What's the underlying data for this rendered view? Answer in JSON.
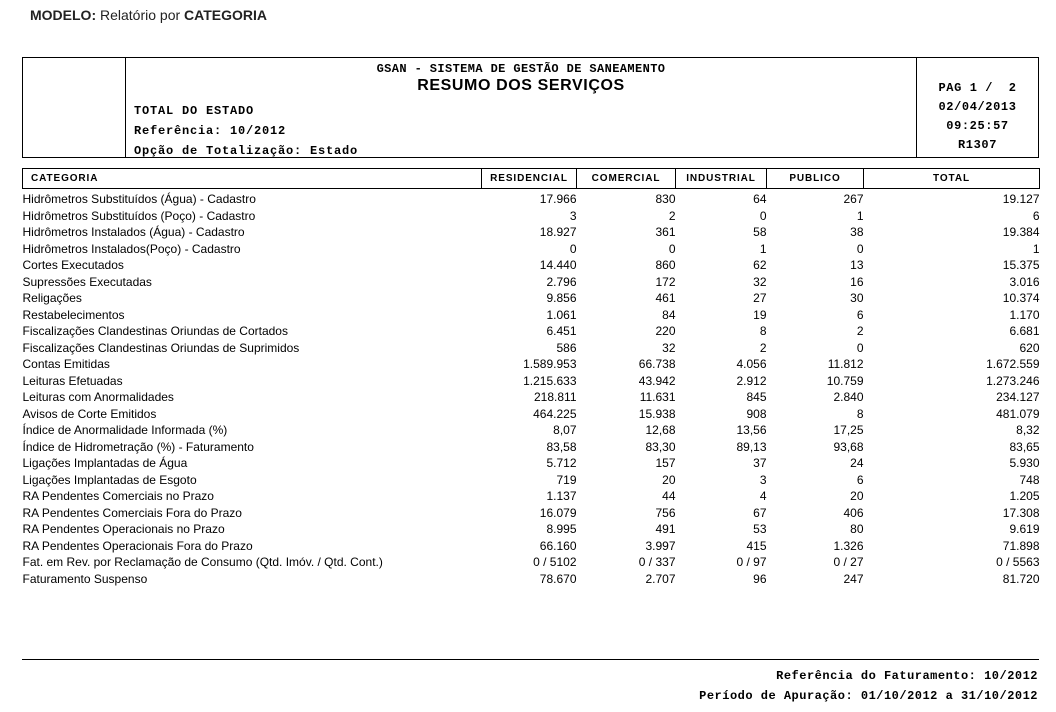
{
  "page": {
    "modelo_label": "MODELO:",
    "modelo_text": " Relatório por ",
    "modelo_emphasis": "CATEGORIA"
  },
  "header": {
    "system_title": "GSAN - SISTEMA DE GESTÃO DE SANEAMENTO",
    "report_title": "RESUMO DOS SERVIÇOS",
    "scope": "TOTAL DO ESTADO",
    "reference": "Referência: 10/2012",
    "totalization": "Opção de Totalização: Estado",
    "page_info": "PAG 1 /  2",
    "date": "02/04/2013",
    "time": "09:25:57",
    "report_code": "R1307"
  },
  "table": {
    "columns": [
      "CATEGORIA",
      "RESIDENCIAL",
      "COMERCIAL",
      "INDUSTRIAL",
      "PUBLICO",
      "TOTAL"
    ],
    "rows": [
      {
        "label": "Hidrômetros Substituídos (Água) - Cadastro",
        "values": [
          "17.966",
          "830",
          "64",
          "267",
          "19.127"
        ],
        "gap": false
      },
      {
        "label": "Hidrômetros Substituídos (Poço) - Cadastro",
        "values": [
          "3",
          "2",
          "0",
          "1",
          "6"
        ],
        "gap": false
      },
      {
        "label": "Hidrômetros Instalados (Água) - Cadastro",
        "values": [
          "18.927",
          "361",
          "58",
          "38",
          "19.384"
        ],
        "gap": false
      },
      {
        "label": "Hidrômetros Instalados(Poço) - Cadastro",
        "values": [
          "0",
          "0",
          "1",
          "0",
          "1"
        ],
        "gap": false
      },
      {
        "label": "Cortes Executados",
        "values": [
          "14.440",
          "860",
          "62",
          "13",
          "15.375"
        ],
        "gap": false
      },
      {
        "label": "Supressões Executadas",
        "values": [
          "2.796",
          "172",
          "32",
          "16",
          "3.016"
        ],
        "gap": false
      },
      {
        "label": "Religações",
        "values": [
          "9.856",
          "461",
          "27",
          "30",
          "10.374"
        ],
        "gap": false
      },
      {
        "label": "Restabelecimentos",
        "values": [
          "1.061",
          "84",
          "19",
          "6",
          "1.170"
        ],
        "gap": false
      },
      {
        "label": "Fiscalizações Clandestinas Oriundas de Cortados",
        "values": [
          "6.451",
          "220",
          "8",
          "2",
          "6.681"
        ],
        "gap": false
      },
      {
        "label": "Fiscalizações Clandestinas Oriundas de Suprimidos",
        "values": [
          "586",
          "32",
          "2",
          "0",
          "620"
        ],
        "gap": false
      },
      {
        "label": "Contas Emitidas",
        "values": [
          "1.589.953",
          "66.738",
          "4.056",
          "11.812",
          "1.672.559"
        ],
        "gap": false
      },
      {
        "label": "Leituras Efetuadas",
        "values": [
          "1.215.633",
          "43.942",
          "2.912",
          "10.759",
          "1.273.246"
        ],
        "gap": false
      },
      {
        "label": "Leituras com Anormalidades",
        "values": [
          "218.811",
          "11.631",
          "845",
          "2.840",
          "234.127"
        ],
        "gap": false
      },
      {
        "label": "Avisos de Corte Emitidos",
        "values": [
          "464.225",
          "15.938",
          "908",
          "8",
          "481.079"
        ],
        "gap": false
      },
      {
        "label": "Índice de Anormalidade Informada (%)",
        "values": [
          "8,07",
          "12,68",
          "13,56",
          "17,25",
          "8,32"
        ],
        "gap": false
      },
      {
        "label": "Índice de Hidrometração (%) - Faturamento",
        "values": [
          "83,58",
          "83,30",
          "89,13",
          "93,68",
          "83,65"
        ],
        "gap": false
      },
      {
        "label": "Ligações Implantadas de Água",
        "values": [
          "5.712",
          "157",
          "37",
          "24",
          "5.930"
        ],
        "gap": false
      },
      {
        "label": "Ligações Implantadas de Esgoto",
        "values": [
          "719",
          "20",
          "3",
          "6",
          "748"
        ],
        "gap": false
      },
      {
        "label": "RA Pendentes Comerciais no Prazo",
        "values": [
          "1.137",
          "44",
          "4",
          "20",
          "1.205"
        ],
        "gap": false
      },
      {
        "label": "RA Pendentes Comerciais Fora do Prazo",
        "values": [
          "16.079",
          "756",
          "67",
          "406",
          "17.308"
        ],
        "gap": false
      },
      {
        "label": "RA Pendentes Operacionais no Prazo",
        "values": [
          "8.995",
          "491",
          "53",
          "80",
          "9.619"
        ],
        "gap": false
      },
      {
        "label": "RA Pendentes Operacionais Fora do Prazo",
        "values": [
          "66.160",
          "3.997",
          "415",
          "1.326",
          "71.898"
        ],
        "gap": false
      },
      {
        "label": "Fat. em Rev. por Reclamação de Consumo (Qtd. Imóv. / Qtd. Cont.)",
        "values": [
          "0 / 5102",
          "0 / 337",
          "0 / 97",
          "0 / 27",
          "0 / 5563"
        ],
        "gap": true
      },
      {
        "label": "Faturamento Suspenso",
        "values": [
          "78.670",
          "2.707",
          "96",
          "247",
          "81.720"
        ],
        "gap": true
      }
    ]
  },
  "footer": {
    "billing_reference": "Referência do Faturamento: 10/2012",
    "period": "Período de Apuração: 01/10/2012 a 31/10/2012"
  }
}
